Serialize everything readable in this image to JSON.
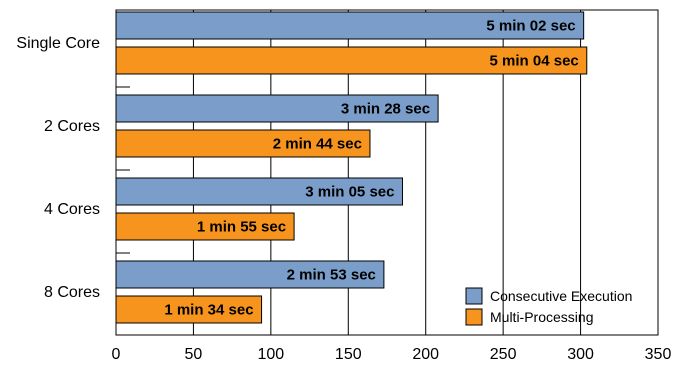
{
  "chart_data": {
    "type": "bar",
    "orientation": "horizontal",
    "categories": [
      "Single Core",
      "2 Cores",
      "4 Cores",
      "8 Cores"
    ],
    "series": [
      {
        "name": "Consecutive Execution",
        "color": "#7a9ec9",
        "values": [
          302,
          208,
          185,
          173
        ],
        "labels": [
          "5 min 02 sec",
          "3 min 28 sec",
          "3 min 05 sec",
          "2 min 53 sec"
        ]
      },
      {
        "name": "Multi-Processing",
        "color": "#f7941d",
        "values": [
          304,
          164,
          115,
          94
        ],
        "labels": [
          "5 min 04 sec",
          "2 min 44 sec",
          "1 min 55 sec",
          "1 min 34 sec"
        ]
      }
    ],
    "xlim": [
      0,
      350
    ],
    "xticks": [
      "0",
      "50",
      "100",
      "150",
      "200",
      "250",
      "300",
      "350"
    ],
    "grid": true,
    "legend_position": "bottom-right",
    "title": "",
    "xlabel": "",
    "ylabel": ""
  }
}
